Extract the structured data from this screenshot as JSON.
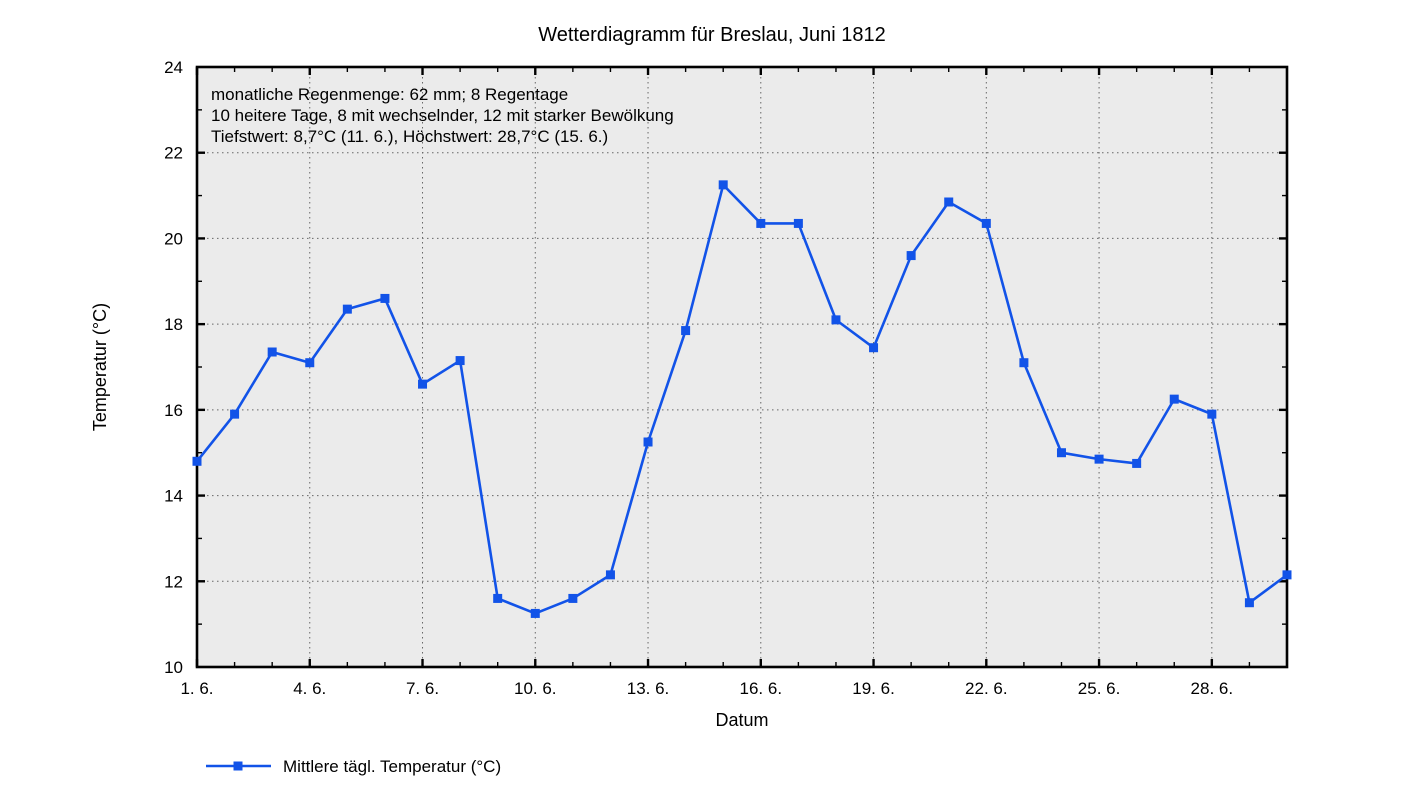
{
  "page": {
    "background": "#ffffff"
  },
  "chart_data": {
    "type": "line",
    "title": "Wetterdiagramm für Breslau, Juni 1812",
    "xlabel": "Datum",
    "ylabel": "Temperatur (°C)",
    "annotations": [
      "monatliche Regenmenge: 62 mm; 8 Regentage",
      "10 heitere Tage, 8 mit wechselnder, 12 mit starker Bewölkung",
      "Tiefstwert: 8,7°C (11. 6.), Höchstwert: 28,7°C (15. 6.)"
    ],
    "xlim": [
      1,
      30
    ],
    "ylim": [
      10,
      24
    ],
    "x_major_ticks": {
      "days": [
        1,
        4,
        7,
        10,
        13,
        16,
        19,
        22,
        25,
        28
      ],
      "labels": [
        "1. 6.",
        "4. 6.",
        "7. 6.",
        "10. 6.",
        "13. 6.",
        "16. 6.",
        "19. 6.",
        "22. 6.",
        "25. 6.",
        "28. 6."
      ]
    },
    "y_major_ticks": [
      10,
      12,
      14,
      16,
      18,
      20,
      22,
      24
    ],
    "grid": "dotted",
    "legend": {
      "position": "bottom-left",
      "label": "Mittlere tägl. Temperatur (°C)"
    },
    "series": [
      {
        "name": "Mittlere tägl. Temperatur (°C)",
        "color": "#1253e8",
        "marker": "square",
        "x": [
          1,
          2,
          3,
          4,
          5,
          6,
          7,
          8,
          9,
          10,
          11,
          12,
          13,
          14,
          15,
          16,
          17,
          18,
          19,
          20,
          21,
          22,
          23,
          24,
          25,
          26,
          27,
          28,
          29,
          30
        ],
        "values": [
          14.8,
          15.9,
          17.35,
          17.1,
          18.35,
          18.6,
          16.6,
          17.15,
          11.6,
          11.25,
          11.6,
          12.15,
          15.25,
          17.85,
          21.25,
          20.35,
          20.35,
          18.1,
          17.45,
          19.6,
          20.85,
          20.35,
          17.1,
          15.0,
          14.85,
          14.75,
          16.25,
          15.9,
          11.5,
          12.15
        ]
      }
    ],
    "colors": {
      "plot_background": "#ebebeb",
      "grid": "#666666",
      "axis": "#000000",
      "text": "#000000"
    }
  }
}
